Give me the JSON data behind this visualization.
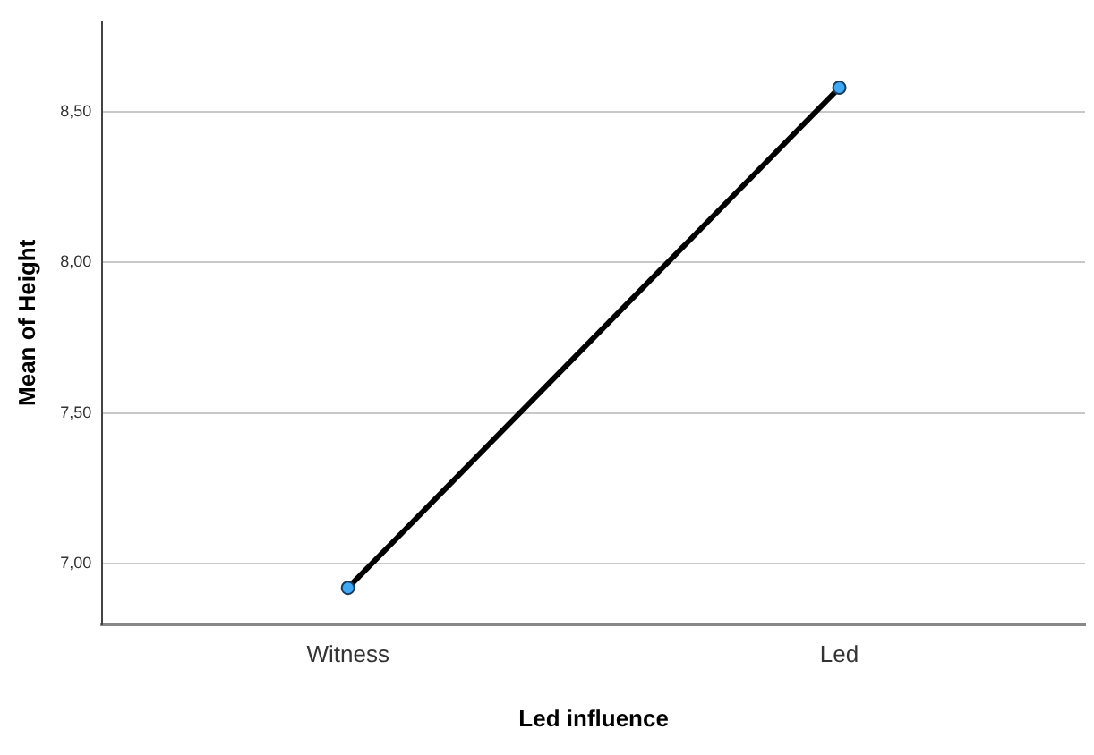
{
  "chart_data": {
    "type": "line",
    "xlabel": "Led influence",
    "ylabel": "Mean of Height",
    "categories": [
      "Witness",
      "Led"
    ],
    "series": [
      {
        "color": "#000000",
        "values": [
          6.92,
          8.58
        ]
      }
    ],
    "marker": "circle",
    "line_style": "solid",
    "ylim": [
      6.8,
      8.8
    ],
    "yticks": [
      {
        "value": 7,
        "label": "7,00"
      },
      {
        "value": 7.5,
        "label": "7,50"
      },
      {
        "value": 8,
        "label": "8,00"
      },
      {
        "value": 8.5,
        "label": "8,50"
      }
    ],
    "grid": "y",
    "legend": false
  }
}
